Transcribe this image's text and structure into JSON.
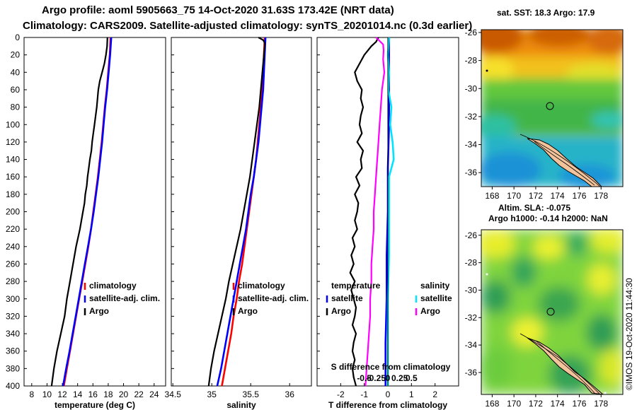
{
  "title": {
    "line1": "Argo profile: aoml 5905663_75 14-Oct-2020 31.63S 173.42E (NRT data)",
    "line2": "Climatology: CARS2009. Satellite-adjusted climatology: synTS_20201014.nc (0.3d earlier)"
  },
  "credit": "©IMOS 19-Oct-2020 11:44:30",
  "colors": {
    "climatology": "#ff0000",
    "satellite": "#0000ff",
    "argo": "#000000",
    "sal_satellite": "#00e5ff",
    "sal_argo": "#ff00ff"
  },
  "depth_axis": {
    "ylim": [
      0,
      400
    ],
    "ticks": [
      "0",
      "20",
      "40",
      "60",
      "80",
      "100",
      "120",
      "140",
      "160",
      "180",
      "200",
      "220",
      "240",
      "260",
      "280",
      "300",
      "320",
      "340",
      "360",
      "380",
      "400"
    ]
  },
  "chart_data": [
    {
      "type": "line",
      "name": "temperature",
      "xlabel": "temperature (deg C)",
      "ylabel": "depth",
      "xlim": [
        7,
        25.5
      ],
      "xticks": [
        8,
        10,
        12,
        14,
        16,
        18,
        20,
        22,
        24
      ],
      "xtick_labels": [
        "8",
        "10",
        "12",
        "14",
        "16",
        "18",
        "20",
        "22",
        "24"
      ],
      "legend": [
        "climatology",
        "satellite-adj. clim.",
        "Argo"
      ],
      "series": [
        {
          "name": "climatology",
          "color_key": "climatology",
          "depth": [
            0,
            20,
            40,
            60,
            80,
            100,
            120,
            140,
            160,
            180,
            200,
            220,
            240,
            260,
            280,
            300,
            320,
            340,
            360,
            380,
            400
          ],
          "values": [
            18.3,
            18.2,
            18.0,
            17.8,
            17.55,
            17.35,
            17.15,
            16.9,
            16.65,
            16.35,
            16.05,
            15.75,
            15.4,
            15.0,
            14.6,
            14.2,
            13.8,
            13.4,
            13.0,
            12.6,
            12.2
          ]
        },
        {
          "name": "satellite-adj. clim.",
          "color_key": "satellite",
          "depth": [
            0,
            20,
            40,
            60,
            80,
            100,
            120,
            140,
            160,
            180,
            200,
            220,
            240,
            260,
            280,
            300,
            320,
            340,
            360,
            380,
            400
          ],
          "values": [
            18.4,
            18.25,
            18.05,
            17.85,
            17.6,
            17.4,
            17.2,
            16.95,
            16.7,
            16.4,
            16.1,
            15.75,
            15.35,
            14.95,
            14.55,
            14.15,
            13.75,
            13.35,
            12.95,
            12.5,
            12.1
          ]
        },
        {
          "name": "Argo",
          "color_key": "argo",
          "depth": [
            0,
            10,
            20,
            30,
            40,
            50,
            60,
            70,
            80,
            90,
            100,
            110,
            120,
            130,
            140,
            150,
            160,
            170,
            180,
            190,
            200,
            220,
            240,
            260,
            280,
            300,
            320,
            340,
            360,
            380,
            400
          ],
          "values": [
            17.9,
            17.85,
            17.7,
            17.5,
            17.2,
            16.9,
            16.7,
            16.6,
            16.5,
            16.35,
            16.2,
            16.05,
            15.9,
            15.8,
            15.6,
            15.45,
            15.3,
            15.2,
            15.0,
            14.9,
            14.7,
            14.3,
            13.8,
            13.4,
            13.0,
            12.6,
            12.3,
            11.8,
            11.3,
            10.9,
            10.6
          ]
        }
      ]
    },
    {
      "type": "line",
      "name": "salinity",
      "xlabel": "salinity",
      "ylabel": "depth",
      "xlim": [
        34.48,
        36.28
      ],
      "xticks": [
        34.5,
        35,
        35.5,
        36
      ],
      "xtick_labels": [
        "34.5",
        "35",
        "35.5",
        "36"
      ],
      "legend": [
        "climatology",
        "satellite-adj. clim.",
        "Argo"
      ],
      "series": [
        {
          "name": "climatology",
          "color_key": "climatology",
          "depth": [
            0,
            20,
            40,
            60,
            80,
            100,
            120,
            140,
            160,
            180,
            200,
            220,
            240,
            260,
            280,
            300,
            320,
            340,
            360,
            380,
            400
          ],
          "values": [
            35.68,
            35.67,
            35.66,
            35.65,
            35.63,
            35.61,
            35.59,
            35.57,
            35.54,
            35.51,
            35.48,
            35.45,
            35.42,
            35.39,
            35.35,
            35.32,
            35.28,
            35.25,
            35.21,
            35.17,
            35.13
          ]
        },
        {
          "name": "satellite-adj. clim.",
          "color_key": "satellite",
          "depth": [
            0,
            20,
            40,
            60,
            80,
            100,
            120,
            140,
            160,
            180,
            200,
            220,
            240,
            260,
            280,
            300,
            320,
            340,
            360,
            380,
            400
          ],
          "values": [
            35.69,
            35.68,
            35.67,
            35.66,
            35.64,
            35.62,
            35.6,
            35.57,
            35.54,
            35.5,
            35.47,
            35.44,
            35.4,
            35.36,
            35.32,
            35.28,
            35.24,
            35.2,
            35.16,
            35.12,
            35.07
          ]
        },
        {
          "name": "Argo",
          "color_key": "argo",
          "depth": [
            0,
            3,
            6,
            10,
            20,
            30,
            40,
            60,
            80,
            100,
            120,
            140,
            160,
            180,
            200,
            220,
            240,
            260,
            280,
            300,
            320,
            340,
            360,
            380,
            400
          ],
          "values": [
            35.6,
            35.66,
            35.68,
            35.68,
            35.67,
            35.66,
            35.65,
            35.63,
            35.61,
            35.58,
            35.55,
            35.52,
            35.49,
            35.45,
            35.41,
            35.37,
            35.32,
            35.27,
            35.22,
            35.18,
            35.13,
            35.08,
            35.03,
            34.99,
            34.96
          ]
        }
      ]
    },
    {
      "type": "line",
      "name": "difference",
      "xlabel": "T difference from climatology",
      "top_xlabel": "S difference from climatology",
      "ylabel": "depth",
      "xlim": [
        -3,
        3
      ],
      "xticks": [
        -2,
        -1,
        0,
        1,
        2
      ],
      "xtick_labels": [
        "-2",
        "-1",
        "0",
        "1",
        "2"
      ],
      "top_xticks": [
        -1,
        -0.5,
        0,
        0.5,
        1
      ],
      "top_xtick_labels": [
        "-0.5",
        "-0.25",
        "0",
        "0.25",
        "0.5"
      ],
      "legend_titles": [
        "temperature",
        "salinity"
      ],
      "legend_temperature": [
        "satellite",
        "Argo"
      ],
      "legend_salinity": [
        "satellite",
        "Argo"
      ],
      "series": [
        {
          "name": "T satellite",
          "color_key": "satellite",
          "depth": [
            0,
            50,
            100,
            150,
            200,
            250,
            300,
            350,
            400
          ],
          "values": [
            0.05,
            0.05,
            0.05,
            0.0,
            0.0,
            -0.05,
            -0.05,
            -0.1,
            -0.1
          ]
        },
        {
          "name": "T Argo",
          "color_key": "argo",
          "depth": [
            0,
            5,
            10,
            20,
            30,
            40,
            50,
            60,
            70,
            80,
            90,
            100,
            110,
            120,
            130,
            140,
            150,
            160,
            170,
            180,
            190,
            200,
            210,
            220,
            230,
            240,
            250,
            260,
            270,
            280,
            290,
            300,
            310,
            320,
            330,
            340,
            350,
            360,
            370,
            380,
            390,
            400
          ],
          "values": [
            -0.4,
            -0.5,
            -0.7,
            -1.0,
            -1.2,
            -1.4,
            -1.3,
            -1.1,
            -1.15,
            -1.05,
            -1.15,
            -1.2,
            -1.1,
            -1.3,
            -1.05,
            -1.15,
            -1.1,
            -1.35,
            -1.2,
            -1.4,
            -1.25,
            -1.3,
            -1.4,
            -1.3,
            -1.5,
            -1.4,
            -1.55,
            -1.45,
            -1.6,
            -1.4,
            -1.55,
            -1.45,
            -1.35,
            -1.4,
            -1.5,
            -1.35,
            -1.45,
            -1.5,
            -1.4,
            -1.5,
            -1.45,
            -1.35
          ]
        },
        {
          "name": "S satellite",
          "color_key": "sal_satellite",
          "depth": [
            0,
            20,
            40,
            60,
            80,
            100,
            120,
            140,
            160,
            180,
            200,
            250,
            300,
            350,
            400
          ],
          "values": [
            0.05,
            0.0,
            0.05,
            0.02,
            0.15,
            0.1,
            0.2,
            0.25,
            0.05,
            0.05,
            0.05,
            0.05,
            0.0,
            0.0,
            0.0
          ]
        },
        {
          "name": "S Argo",
          "color_key": "sal_argo",
          "depth": [
            0,
            4,
            8,
            15,
            25,
            40,
            60,
            80,
            100,
            120,
            140,
            160,
            180,
            200,
            220,
            240,
            260,
            280,
            300,
            320,
            340,
            360,
            380,
            400
          ],
          "values": [
            -0.5,
            -0.35,
            -0.2,
            -0.18,
            -0.2,
            -0.15,
            -0.25,
            -0.3,
            -0.35,
            -0.4,
            -0.45,
            -0.5,
            -0.55,
            -0.6,
            -0.6,
            -0.65,
            -0.7,
            -0.7,
            -0.75,
            -0.75,
            -0.8,
            -0.85,
            -0.9,
            -0.95
          ]
        }
      ]
    },
    {
      "type": "heatmap",
      "name": "sst_map",
      "title": "sat. SST: 18.3 Argo: 17.9",
      "xlim": [
        167,
        180
      ],
      "ylim": [
        -37,
        -25.8
      ],
      "xticks": [
        168,
        170,
        172,
        174,
        176,
        178
      ],
      "xtick_labels": [
        "168",
        "170",
        "172",
        "174",
        "176",
        "178"
      ],
      "yticks": [
        -26,
        -28,
        -30,
        -32,
        -34,
        -36
      ],
      "ytick_labels": [
        "-26",
        "-28",
        "-30",
        "-32",
        "-34",
        "-36"
      ],
      "profile_location": [
        173.42,
        -31.63
      ]
    },
    {
      "type": "heatmap",
      "name": "sla_map",
      "title_line1": "Altim. SLA: -0.075",
      "title_line2": "Argo h1000: -0.14 h2000: NaN",
      "xlim": [
        167,
        180
      ],
      "ylim": [
        -37.6,
        -25.6
      ],
      "xticks": [
        168,
        170,
        172,
        174,
        176,
        178
      ],
      "xtick_labels": [
        "168",
        "170",
        "172",
        "174",
        "176",
        "178"
      ],
      "yticks": [
        -26,
        -28,
        -30,
        -32,
        -34,
        -36
      ],
      "ytick_labels": [
        "-26",
        "-28",
        "-30",
        "-32",
        "-34",
        "-36"
      ],
      "profile_location": [
        173.42,
        -31.63
      ]
    }
  ]
}
